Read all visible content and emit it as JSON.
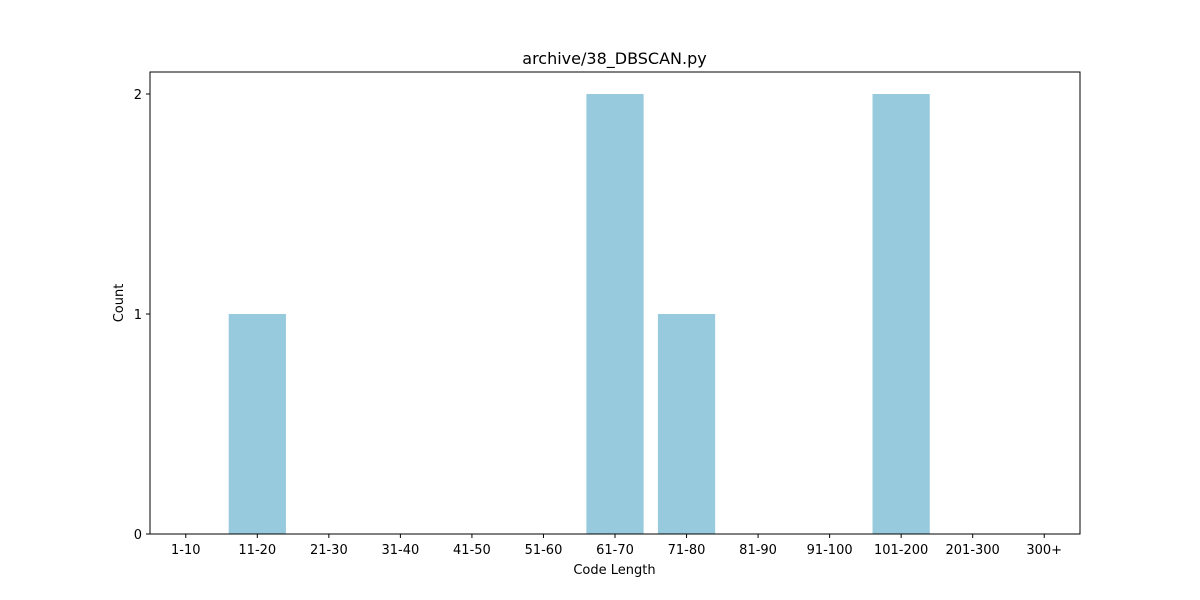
{
  "chart_data": {
    "type": "bar",
    "title": "archive/38_DBSCAN.py",
    "xlabel": "Code Length",
    "ylabel": "Count",
    "categories": [
      "1-10",
      "11-20",
      "21-30",
      "31-40",
      "41-50",
      "51-60",
      "61-70",
      "71-80",
      "81-90",
      "91-100",
      "101-200",
      "201-300",
      "300+"
    ],
    "values": [
      0,
      1,
      0,
      0,
      0,
      0,
      2,
      1,
      0,
      0,
      2,
      0,
      0
    ],
    "ylim": [
      0,
      2.1
    ],
    "yticks": [
      0,
      1,
      2
    ],
    "grid": false,
    "bar_color": "#96cadc"
  }
}
